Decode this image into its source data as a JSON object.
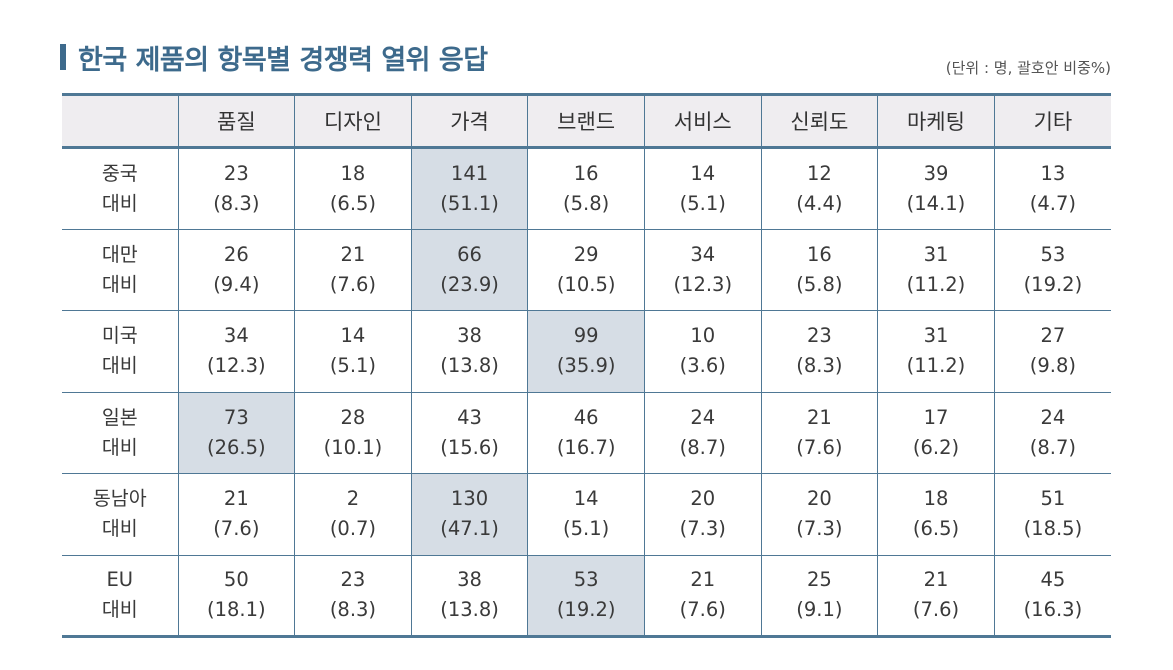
{
  "title": "한국 제품의 항목별 경쟁력 열위 응답",
  "unit_note": "(단위 : 명, 괄호안 비중%)",
  "colors": {
    "accent": "#3d6a8c",
    "border": "#4f7895",
    "header_bg": "#efedf0",
    "highlight_bg": "#d6dde5"
  },
  "table": {
    "corner": "",
    "columns": [
      "품질",
      "디자인",
      "가격",
      "브랜드",
      "서비스",
      "신뢰도",
      "마케팅",
      "기타"
    ],
    "rows": [
      {
        "label_line1": "중국",
        "label_line2": "대비",
        "highlight_col": 2,
        "cells": [
          {
            "count": "23",
            "pct": "(8.3)"
          },
          {
            "count": "18",
            "pct": "(6.5)"
          },
          {
            "count": "141",
            "pct": "(51.1)"
          },
          {
            "count": "16",
            "pct": "(5.8)"
          },
          {
            "count": "14",
            "pct": "(5.1)"
          },
          {
            "count": "12",
            "pct": "(4.4)"
          },
          {
            "count": "39",
            "pct": "(14.1)"
          },
          {
            "count": "13",
            "pct": "(4.7)"
          }
        ]
      },
      {
        "label_line1": "대만",
        "label_line2": "대비",
        "highlight_col": 2,
        "cells": [
          {
            "count": "26",
            "pct": "(9.4)"
          },
          {
            "count": "21",
            "pct": "(7.6)"
          },
          {
            "count": "66",
            "pct": "(23.9)"
          },
          {
            "count": "29",
            "pct": "(10.5)"
          },
          {
            "count": "34",
            "pct": "(12.3)"
          },
          {
            "count": "16",
            "pct": "(5.8)"
          },
          {
            "count": "31",
            "pct": "(11.2)"
          },
          {
            "count": "53",
            "pct": "(19.2)"
          }
        ]
      },
      {
        "label_line1": "미국",
        "label_line2": "대비",
        "highlight_col": 3,
        "cells": [
          {
            "count": "34",
            "pct": "(12.3)"
          },
          {
            "count": "14",
            "pct": "(5.1)"
          },
          {
            "count": "38",
            "pct": "(13.8)"
          },
          {
            "count": "99",
            "pct": "(35.9)"
          },
          {
            "count": "10",
            "pct": "(3.6)"
          },
          {
            "count": "23",
            "pct": "(8.3)"
          },
          {
            "count": "31",
            "pct": "(11.2)"
          },
          {
            "count": "27",
            "pct": "(9.8)"
          }
        ]
      },
      {
        "label_line1": "일본",
        "label_line2": "대비",
        "highlight_col": 0,
        "cells": [
          {
            "count": "73",
            "pct": "(26.5)"
          },
          {
            "count": "28",
            "pct": "(10.1)"
          },
          {
            "count": "43",
            "pct": "(15.6)"
          },
          {
            "count": "46",
            "pct": "(16.7)"
          },
          {
            "count": "24",
            "pct": "(8.7)"
          },
          {
            "count": "21",
            "pct": "(7.6)"
          },
          {
            "count": "17",
            "pct": "(6.2)"
          },
          {
            "count": "24",
            "pct": "(8.7)"
          }
        ]
      },
      {
        "label_line1": "동남아",
        "label_line2": "대비",
        "highlight_col": 2,
        "cells": [
          {
            "count": "21",
            "pct": "(7.6)"
          },
          {
            "count": "2",
            "pct": "(0.7)"
          },
          {
            "count": "130",
            "pct": "(47.1)"
          },
          {
            "count": "14",
            "pct": "(5.1)"
          },
          {
            "count": "20",
            "pct": "(7.3)"
          },
          {
            "count": "20",
            "pct": "(7.3)"
          },
          {
            "count": "18",
            "pct": "(6.5)"
          },
          {
            "count": "51",
            "pct": "(18.5)"
          }
        ]
      },
      {
        "label_line1": "EU",
        "label_line2": "대비",
        "highlight_col": 3,
        "cells": [
          {
            "count": "50",
            "pct": "(18.1)"
          },
          {
            "count": "23",
            "pct": "(8.3)"
          },
          {
            "count": "38",
            "pct": "(13.8)"
          },
          {
            "count": "53",
            "pct": "(19.2)"
          },
          {
            "count": "21",
            "pct": "(7.6)"
          },
          {
            "count": "25",
            "pct": "(9.1)"
          },
          {
            "count": "21",
            "pct": "(7.6)"
          },
          {
            "count": "45",
            "pct": "(16.3)"
          }
        ]
      }
    ]
  }
}
